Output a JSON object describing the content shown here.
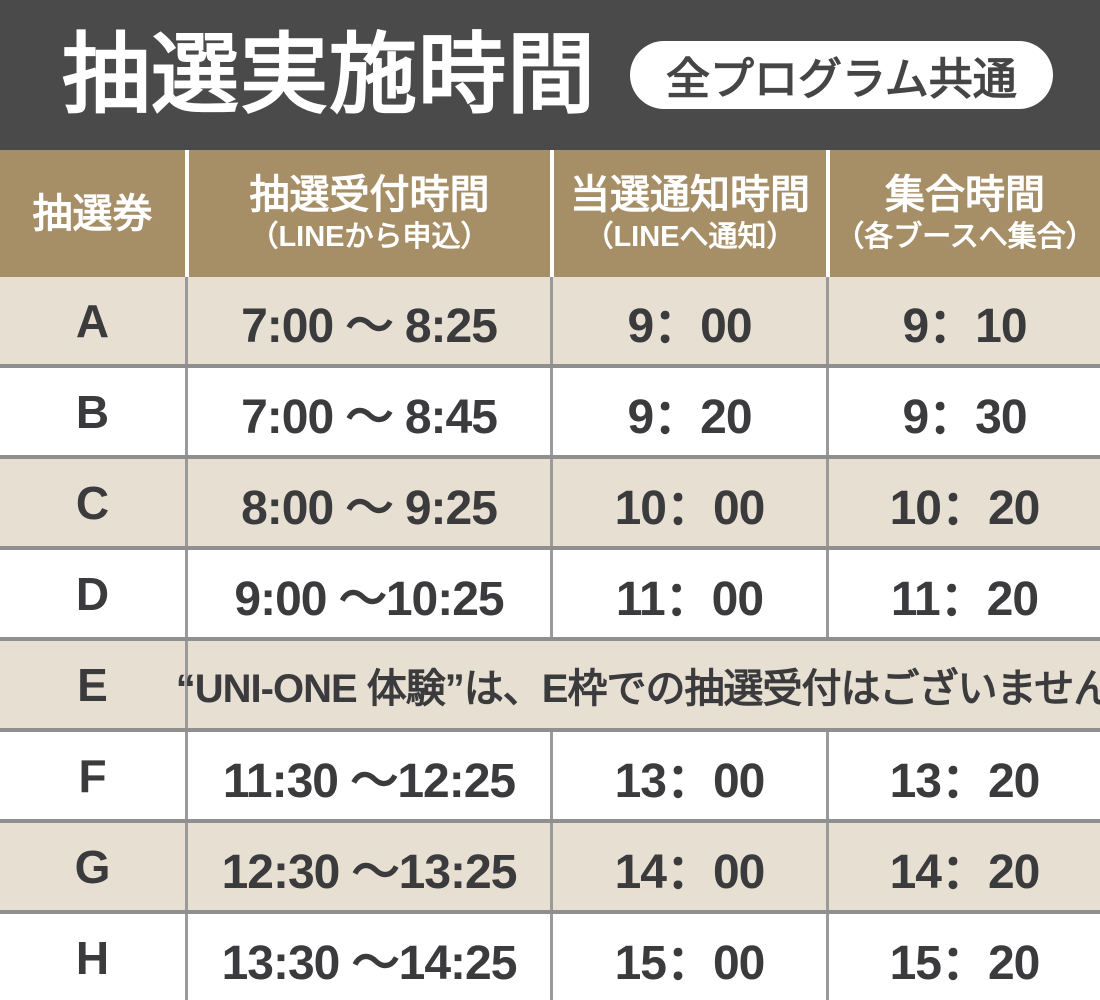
{
  "banner": {
    "title": "抽選実施時間",
    "badge": "全プログラム共通"
  },
  "table": {
    "headers": [
      {
        "main": "抽選券",
        "sub": ""
      },
      {
        "main": "抽選受付時間",
        "sub": "（LINEから申込）"
      },
      {
        "main": "当選通知時間",
        "sub": "（LINEへ通知）"
      },
      {
        "main": "集合時間",
        "sub": "（各ブースへ集合）"
      }
    ],
    "rows": [
      {
        "ticket": "A",
        "reception": "7:00 ～ 8:25",
        "notify": "9：00",
        "meet": "9：10"
      },
      {
        "ticket": "B",
        "reception": "7:00 ～ 8:45",
        "notify": "9：20",
        "meet": "9：30"
      },
      {
        "ticket": "C",
        "reception": "8:00 ～ 9:25",
        "notify": "10：00",
        "meet": "10：20"
      },
      {
        "ticket": "D",
        "reception": "9:00 ～10:25",
        "notify": "11：00",
        "meet": "11：20"
      },
      {
        "ticket": "E",
        "special": "“UNI-ONE 体験”は、E枠での抽選受付はございません"
      },
      {
        "ticket": "F",
        "reception": "11:30 ～12:25",
        "notify": "13：00",
        "meet": "13：20"
      },
      {
        "ticket": "G",
        "reception": "12:30 ～13:25",
        "notify": "14：00",
        "meet": "14：20"
      },
      {
        "ticket": "H",
        "reception": "13:30 ～14:25",
        "notify": "15：00",
        "meet": "15：20"
      }
    ]
  },
  "colors": {
    "banner-bg": "#4a4a4a",
    "thead-bg": "#a68f66",
    "row-beige": "#e6dfd2",
    "cell-text": "#3b3b3d",
    "divider": "#8f8f8f",
    "vline": "#9a9a9a"
  }
}
